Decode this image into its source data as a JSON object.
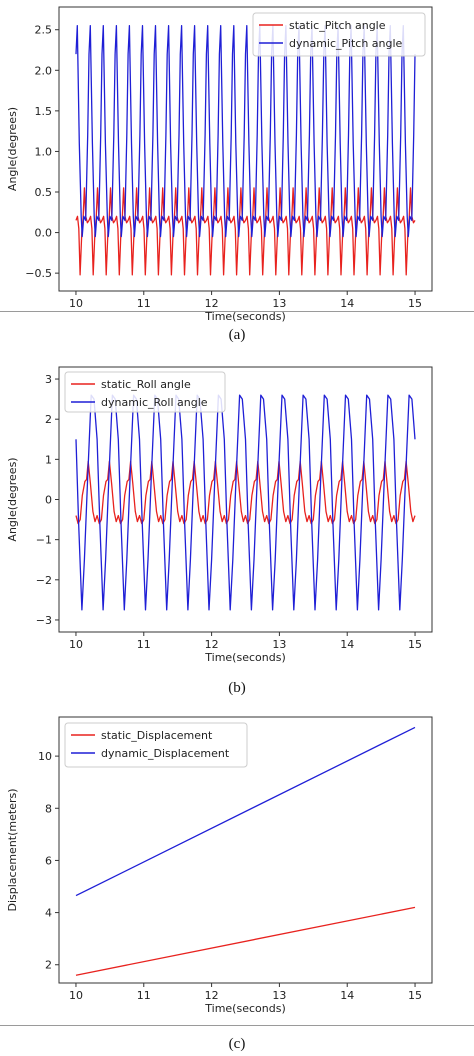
{
  "captions": [
    "(a)",
    "(b)",
    "(c)"
  ],
  "colors": {
    "static": "#e8221e",
    "dynamic": "#1f1fd6",
    "axes": "#333333"
  },
  "chart_data": [
    {
      "type": "line",
      "title": "",
      "xlabel": "Time(seconds)",
      "ylabel": "Angle(degrees)",
      "xlim": [
        9.75,
        15.25
      ],
      "ylim": [
        -0.72,
        2.78
      ],
      "xticks": [
        10,
        11,
        12,
        13,
        14,
        15
      ],
      "yticks": [
        -0.5,
        0.0,
        0.5,
        1.0,
        1.5,
        2.0,
        2.5
      ],
      "ytick_labels": [
        "−0.5",
        "0.0",
        "0.5",
        "1.0",
        "1.5",
        "2.0",
        "2.5"
      ],
      "legend_position": "top-right",
      "grid": false,
      "cycles": 26,
      "series": [
        {
          "name": "static_Pitch angle",
          "color": "#e8221e",
          "shape": [
            [
              0.0,
              0.15
            ],
            [
              0.12,
              0.2
            ],
            [
              0.22,
              0.05
            ],
            [
              0.32,
              -0.52
            ],
            [
              0.45,
              0.0
            ],
            [
              0.55,
              0.18
            ],
            [
              0.65,
              0.55
            ],
            [
              0.75,
              0.2
            ],
            [
              0.88,
              0.12
            ],
            [
              1.0,
              0.15
            ]
          ]
        },
        {
          "name": "dynamic_Pitch angle",
          "color": "#1f1fd6",
          "shape": [
            [
              0.0,
              2.2
            ],
            [
              0.1,
              2.55
            ],
            [
              0.26,
              1.1
            ],
            [
              0.4,
              0.2
            ],
            [
              0.48,
              -0.05
            ],
            [
              0.6,
              0.2
            ],
            [
              0.75,
              0.15
            ],
            [
              0.9,
              1.2
            ],
            [
              1.0,
              2.2
            ]
          ]
        }
      ]
    },
    {
      "type": "line",
      "title": "",
      "xlabel": "Time(seconds)",
      "ylabel": "Angle(degrees)",
      "xlim": [
        9.75,
        15.25
      ],
      "ylim": [
        -3.3,
        3.3
      ],
      "xticks": [
        10,
        11,
        12,
        13,
        14,
        15
      ],
      "yticks": [
        -3,
        -2,
        -1,
        0,
        1,
        2,
        3
      ],
      "ytick_labels": [
        "−3",
        "−2",
        "−1",
        "0",
        "1",
        "2",
        "3"
      ],
      "legend_position": "top-left",
      "grid": false,
      "cycles": 16,
      "series": [
        {
          "name": "static_Roll angle",
          "color": "#e8221e",
          "shape": [
            [
              0.0,
              -0.4
            ],
            [
              0.1,
              -0.6
            ],
            [
              0.2,
              -0.5
            ],
            [
              0.3,
              0.1
            ],
            [
              0.42,
              0.45
            ],
            [
              0.5,
              0.5
            ],
            [
              0.58,
              0.95
            ],
            [
              0.68,
              0.4
            ],
            [
              0.8,
              -0.3
            ],
            [
              0.9,
              -0.55
            ],
            [
              1.0,
              -0.4
            ]
          ]
        },
        {
          "name": "dynamic_Roll angle",
          "color": "#1f1fd6",
          "shape": [
            [
              0.0,
              1.5
            ],
            [
              0.12,
              -0.5
            ],
            [
              0.28,
              -2.75
            ],
            [
              0.4,
              -1.5
            ],
            [
              0.55,
              0.5
            ],
            [
              0.72,
              2.6
            ],
            [
              0.85,
              2.5
            ],
            [
              1.0,
              1.5
            ]
          ]
        }
      ]
    },
    {
      "type": "line",
      "title": "",
      "xlabel": "Time(seconds)",
      "ylabel": "Displacement(meters)",
      "xlim": [
        9.75,
        15.25
      ],
      "ylim": [
        1.3,
        11.5
      ],
      "xticks": [
        10,
        11,
        12,
        13,
        14,
        15
      ],
      "yticks": [
        2,
        4,
        6,
        8,
        10
      ],
      "legend_position": "top-left",
      "grid": false,
      "series": [
        {
          "name": "static_Displacement",
          "color": "#e8221e",
          "x": [
            10,
            15
          ],
          "y": [
            1.6,
            4.2
          ]
        },
        {
          "name": "dynamic_Displacement",
          "color": "#1f1fd6",
          "x": [
            10,
            15
          ],
          "y": [
            4.65,
            11.1
          ]
        }
      ]
    }
  ]
}
